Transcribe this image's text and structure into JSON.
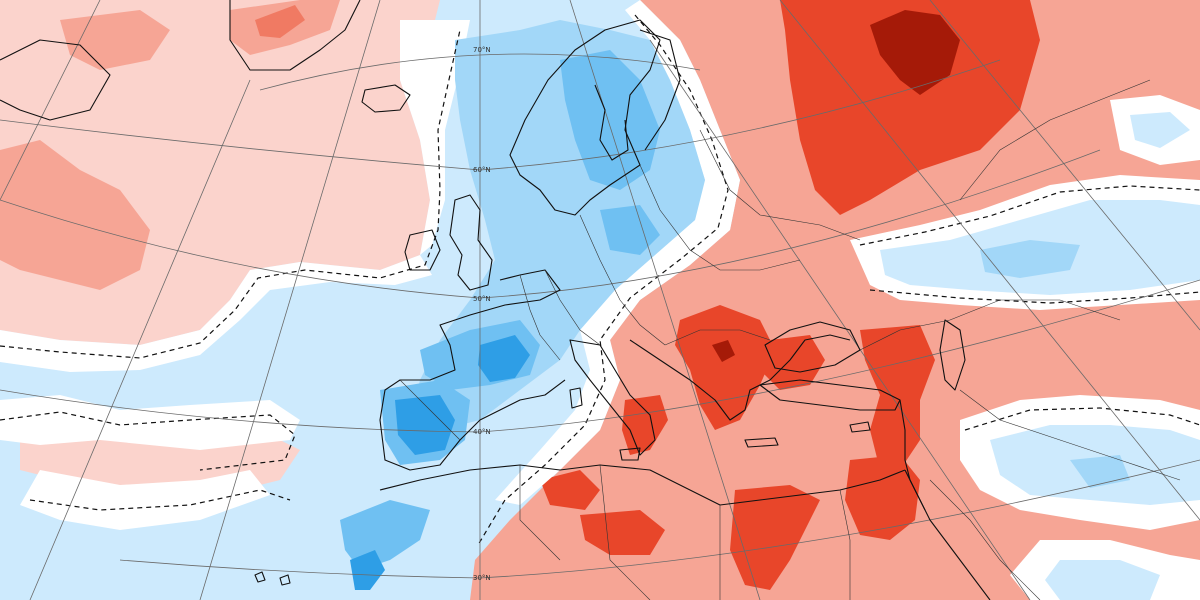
{
  "map": {
    "colors": {
      "warm1": "#fbd3cc",
      "warm2": "#f6a595",
      "warm3": "#f07a63",
      "warm4": "#e8462a",
      "warm5": "#a51a08",
      "cold1": "#cdeafd",
      "cold2": "#a2d7f8",
      "cold3": "#6fc0f2",
      "cold4": "#2e9ee6",
      "neutral": "#ffffff"
    },
    "latitude_labels": [
      {
        "id": "70n",
        "text": "70°N"
      },
      {
        "id": "60n",
        "text": "60°N"
      },
      {
        "id": "50n",
        "text": "50°N"
      },
      {
        "id": "40n",
        "text": "40°N"
      },
      {
        "id": "30n",
        "text": "30°N"
      }
    ]
  }
}
